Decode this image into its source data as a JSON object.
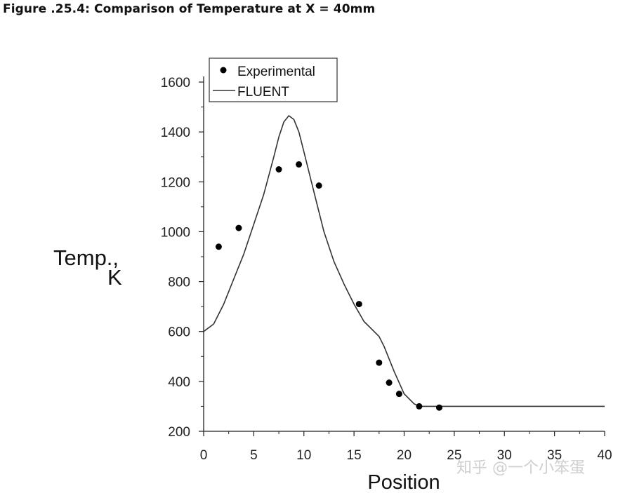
{
  "figure_caption": "Figure .25.4: Comparison of Temperature at X = 40mm",
  "watermark": "知乎 @一个小笨蛋",
  "chart_data": {
    "type": "line",
    "title": "",
    "xlabel": "Position",
    "ylabel_main": "Temp.,",
    "ylabel_unit": "K",
    "xlim": [
      0,
      40
    ],
    "ylim": [
      200,
      1600
    ],
    "x_ticks": [
      0,
      5,
      10,
      15,
      20,
      25,
      30,
      35,
      40
    ],
    "y_ticks": [
      200,
      400,
      600,
      800,
      1000,
      1200,
      1400,
      1600
    ],
    "grid": false,
    "legend_position": "top-left",
    "series": [
      {
        "name": "Experimental",
        "kind": "scatter",
        "color": "#000000",
        "x": [
          1.5,
          3.5,
          7.5,
          9.5,
          11.5,
          15.5,
          17.5,
          18.5,
          19.5,
          21.5,
          23.5
        ],
        "y": [
          940,
          1015,
          1250,
          1270,
          1185,
          710,
          475,
          395,
          350,
          300,
          295
        ]
      },
      {
        "name": "FLUENT",
        "kind": "line",
        "color": "#333333",
        "x": [
          0,
          1,
          2,
          3,
          4,
          5,
          6,
          7,
          7.5,
          8,
          8.5,
          9,
          9.5,
          10,
          11,
          12,
          13,
          14,
          15,
          16,
          17,
          17.5,
          18,
          19,
          20,
          21,
          21.5,
          22,
          23,
          25,
          30,
          35,
          40
        ],
        "y": [
          600,
          630,
          710,
          810,
          910,
          1030,
          1150,
          1300,
          1380,
          1440,
          1465,
          1450,
          1400,
          1320,
          1160,
          1000,
          880,
          790,
          710,
          640,
          600,
          580,
          540,
          440,
          350,
          310,
          300,
          300,
          300,
          300,
          300,
          300,
          300
        ]
      }
    ]
  }
}
